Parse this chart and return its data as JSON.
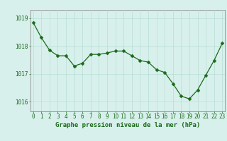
{
  "x": [
    0,
    1,
    2,
    3,
    4,
    5,
    6,
    7,
    8,
    9,
    10,
    11,
    12,
    13,
    14,
    15,
    16,
    17,
    18,
    19,
    20,
    21,
    22,
    23
  ],
  "y": [
    1018.85,
    1018.3,
    1017.85,
    1017.65,
    1017.65,
    1017.28,
    1017.38,
    1017.7,
    1017.7,
    1017.75,
    1017.82,
    1017.82,
    1017.65,
    1017.48,
    1017.42,
    1017.15,
    1017.05,
    1016.65,
    1016.2,
    1016.1,
    1016.42,
    1016.95,
    1017.48,
    1018.1
  ],
  "xlim": [
    -0.3,
    23.3
  ],
  "ylim": [
    1015.65,
    1019.3
  ],
  "yticks": [
    1016,
    1017,
    1018,
    1019
  ],
  "xticks": [
    0,
    1,
    2,
    3,
    4,
    5,
    6,
    7,
    8,
    9,
    10,
    11,
    12,
    13,
    14,
    15,
    16,
    17,
    18,
    19,
    20,
    21,
    22,
    23
  ],
  "xlabel": "Graphe pression niveau de la mer (hPa)",
  "line_color": "#1a6b1a",
  "marker_color": "#1a6b1a",
  "bg_color": "#d8f0ec",
  "grid_color": "#b8dcd6",
  "axis_color": "#888888",
  "tick_label_color": "#1a6b1a",
  "xlabel_color": "#1a6b1a",
  "font_size_tick": 5.5,
  "font_size_label": 6.5,
  "marker_size": 2.5,
  "line_width": 0.9
}
